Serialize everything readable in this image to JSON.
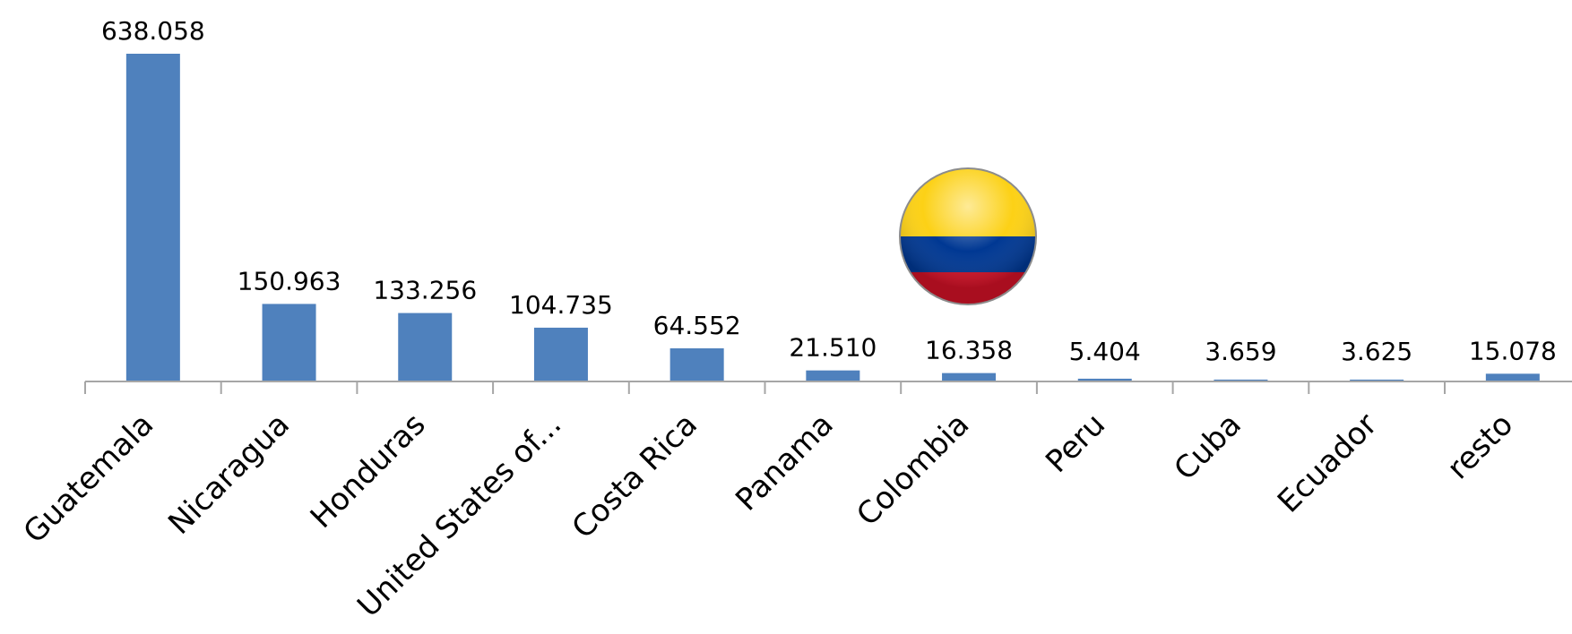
{
  "chart_data": {
    "type": "bar",
    "categories": [
      "Guatemala",
      "Nicaragua",
      "Honduras",
      "United States of...",
      "Costa Rica",
      "Panama",
      "Colombia",
      "Peru",
      "Cuba",
      "Ecuador",
      "resto"
    ],
    "values": [
      638058,
      150963,
      133256,
      104735,
      64552,
      21510,
      16358,
      5404,
      3659,
      3625,
      15078
    ],
    "value_labels": [
      "638.058",
      "150.963",
      "133.256",
      "104.735",
      "64.552",
      "21.510",
      "16.358",
      "5.404",
      "3.659",
      "3.625",
      "15.078"
    ],
    "title": "",
    "xlabel": "",
    "ylabel": "",
    "ylim": [
      0,
      638058
    ],
    "grid": false,
    "legend": "none",
    "bar_color": "#4F81BD",
    "axis_color": "#A6A6A6"
  },
  "decorations": {
    "flag_icon": "colombia-flag-icon",
    "flag_colors": [
      "#FCD116",
      "#003893",
      "#CE1126"
    ]
  }
}
